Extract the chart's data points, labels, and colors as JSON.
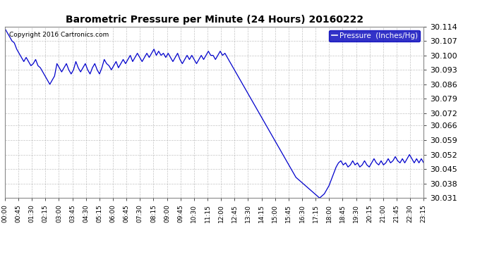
{
  "title": "Barometric Pressure per Minute (24 Hours) 20160222",
  "copyright": "Copyright 2016 Cartronics.com",
  "legend_label": "Pressure  (Inches/Hg)",
  "legend_bg": "#0000bb",
  "legend_fg": "#ffffff",
  "line_color": "#0000cc",
  "bg_color": "#ffffff",
  "grid_color": "#aaaaaa",
  "ylim": [
    30.031,
    30.114
  ],
  "yticks": [
    30.031,
    30.038,
    30.045,
    30.052,
    30.059,
    30.066,
    30.072,
    30.079,
    30.086,
    30.093,
    30.1,
    30.107,
    30.114
  ],
  "xtick_labels": [
    "00:00",
    "00:45",
    "01:30",
    "02:15",
    "03:00",
    "03:45",
    "04:30",
    "05:15",
    "06:00",
    "06:45",
    "07:30",
    "08:15",
    "09:00",
    "09:45",
    "10:30",
    "11:15",
    "12:00",
    "12:45",
    "13:30",
    "14:15",
    "15:00",
    "15:45",
    "16:30",
    "17:15",
    "18:00",
    "18:45",
    "19:30",
    "20:15",
    "21:00",
    "21:45",
    "22:30",
    "23:15"
  ],
  "pressure_values": [
    30.113,
    30.111,
    30.109,
    30.107,
    30.106,
    30.103,
    30.101,
    30.099,
    30.097,
    30.099,
    30.097,
    30.095,
    30.096,
    30.098,
    30.095,
    30.094,
    30.092,
    30.09,
    30.088,
    30.086,
    30.088,
    30.09,
    30.096,
    30.094,
    30.092,
    30.094,
    30.096,
    30.093,
    30.091,
    30.093,
    30.097,
    30.094,
    30.092,
    30.094,
    30.096,
    30.093,
    30.091,
    30.094,
    30.096,
    30.093,
    30.091,
    30.094,
    30.098,
    30.096,
    30.095,
    30.093,
    30.095,
    30.097,
    30.094,
    30.096,
    30.098,
    30.096,
    30.098,
    30.1,
    30.097,
    30.099,
    30.101,
    30.099,
    30.097,
    30.099,
    30.101,
    30.099,
    30.101,
    30.103,
    30.1,
    30.102,
    30.1,
    30.101,
    30.099,
    30.101,
    30.099,
    30.097,
    30.099,
    30.101,
    30.098,
    30.096,
    30.098,
    30.1,
    30.098,
    30.1,
    30.098,
    30.096,
    30.098,
    30.1,
    30.098,
    30.1,
    30.102,
    30.1,
    30.1,
    30.098,
    30.1,
    30.102,
    30.1,
    30.101,
    30.099,
    30.097,
    30.095,
    30.093,
    30.091,
    30.089,
    30.087,
    30.085,
    30.083,
    30.081,
    30.079,
    30.077,
    30.075,
    30.073,
    30.071,
    30.069,
    30.067,
    30.065,
    30.063,
    30.061,
    30.059,
    30.057,
    30.055,
    30.053,
    30.051,
    30.049,
    30.047,
    30.045,
    30.043,
    30.041,
    30.04,
    30.039,
    30.038,
    30.037,
    30.036,
    30.035,
    30.034,
    30.033,
    30.032,
    30.031,
    30.032,
    30.033,
    30.035,
    30.037,
    30.04,
    30.043,
    30.046,
    30.048,
    30.049,
    30.047,
    30.048,
    30.046,
    30.047,
    30.049,
    30.047,
    30.048,
    30.046,
    30.047,
    30.049,
    30.047,
    30.046,
    30.048,
    30.05,
    30.048,
    30.047,
    30.049,
    30.047,
    30.048,
    30.05,
    30.048,
    30.049,
    30.051,
    30.049,
    30.048,
    30.05,
    30.048,
    30.05,
    30.052,
    30.05,
    30.048,
    30.05,
    30.048,
    30.05,
    30.048
  ]
}
